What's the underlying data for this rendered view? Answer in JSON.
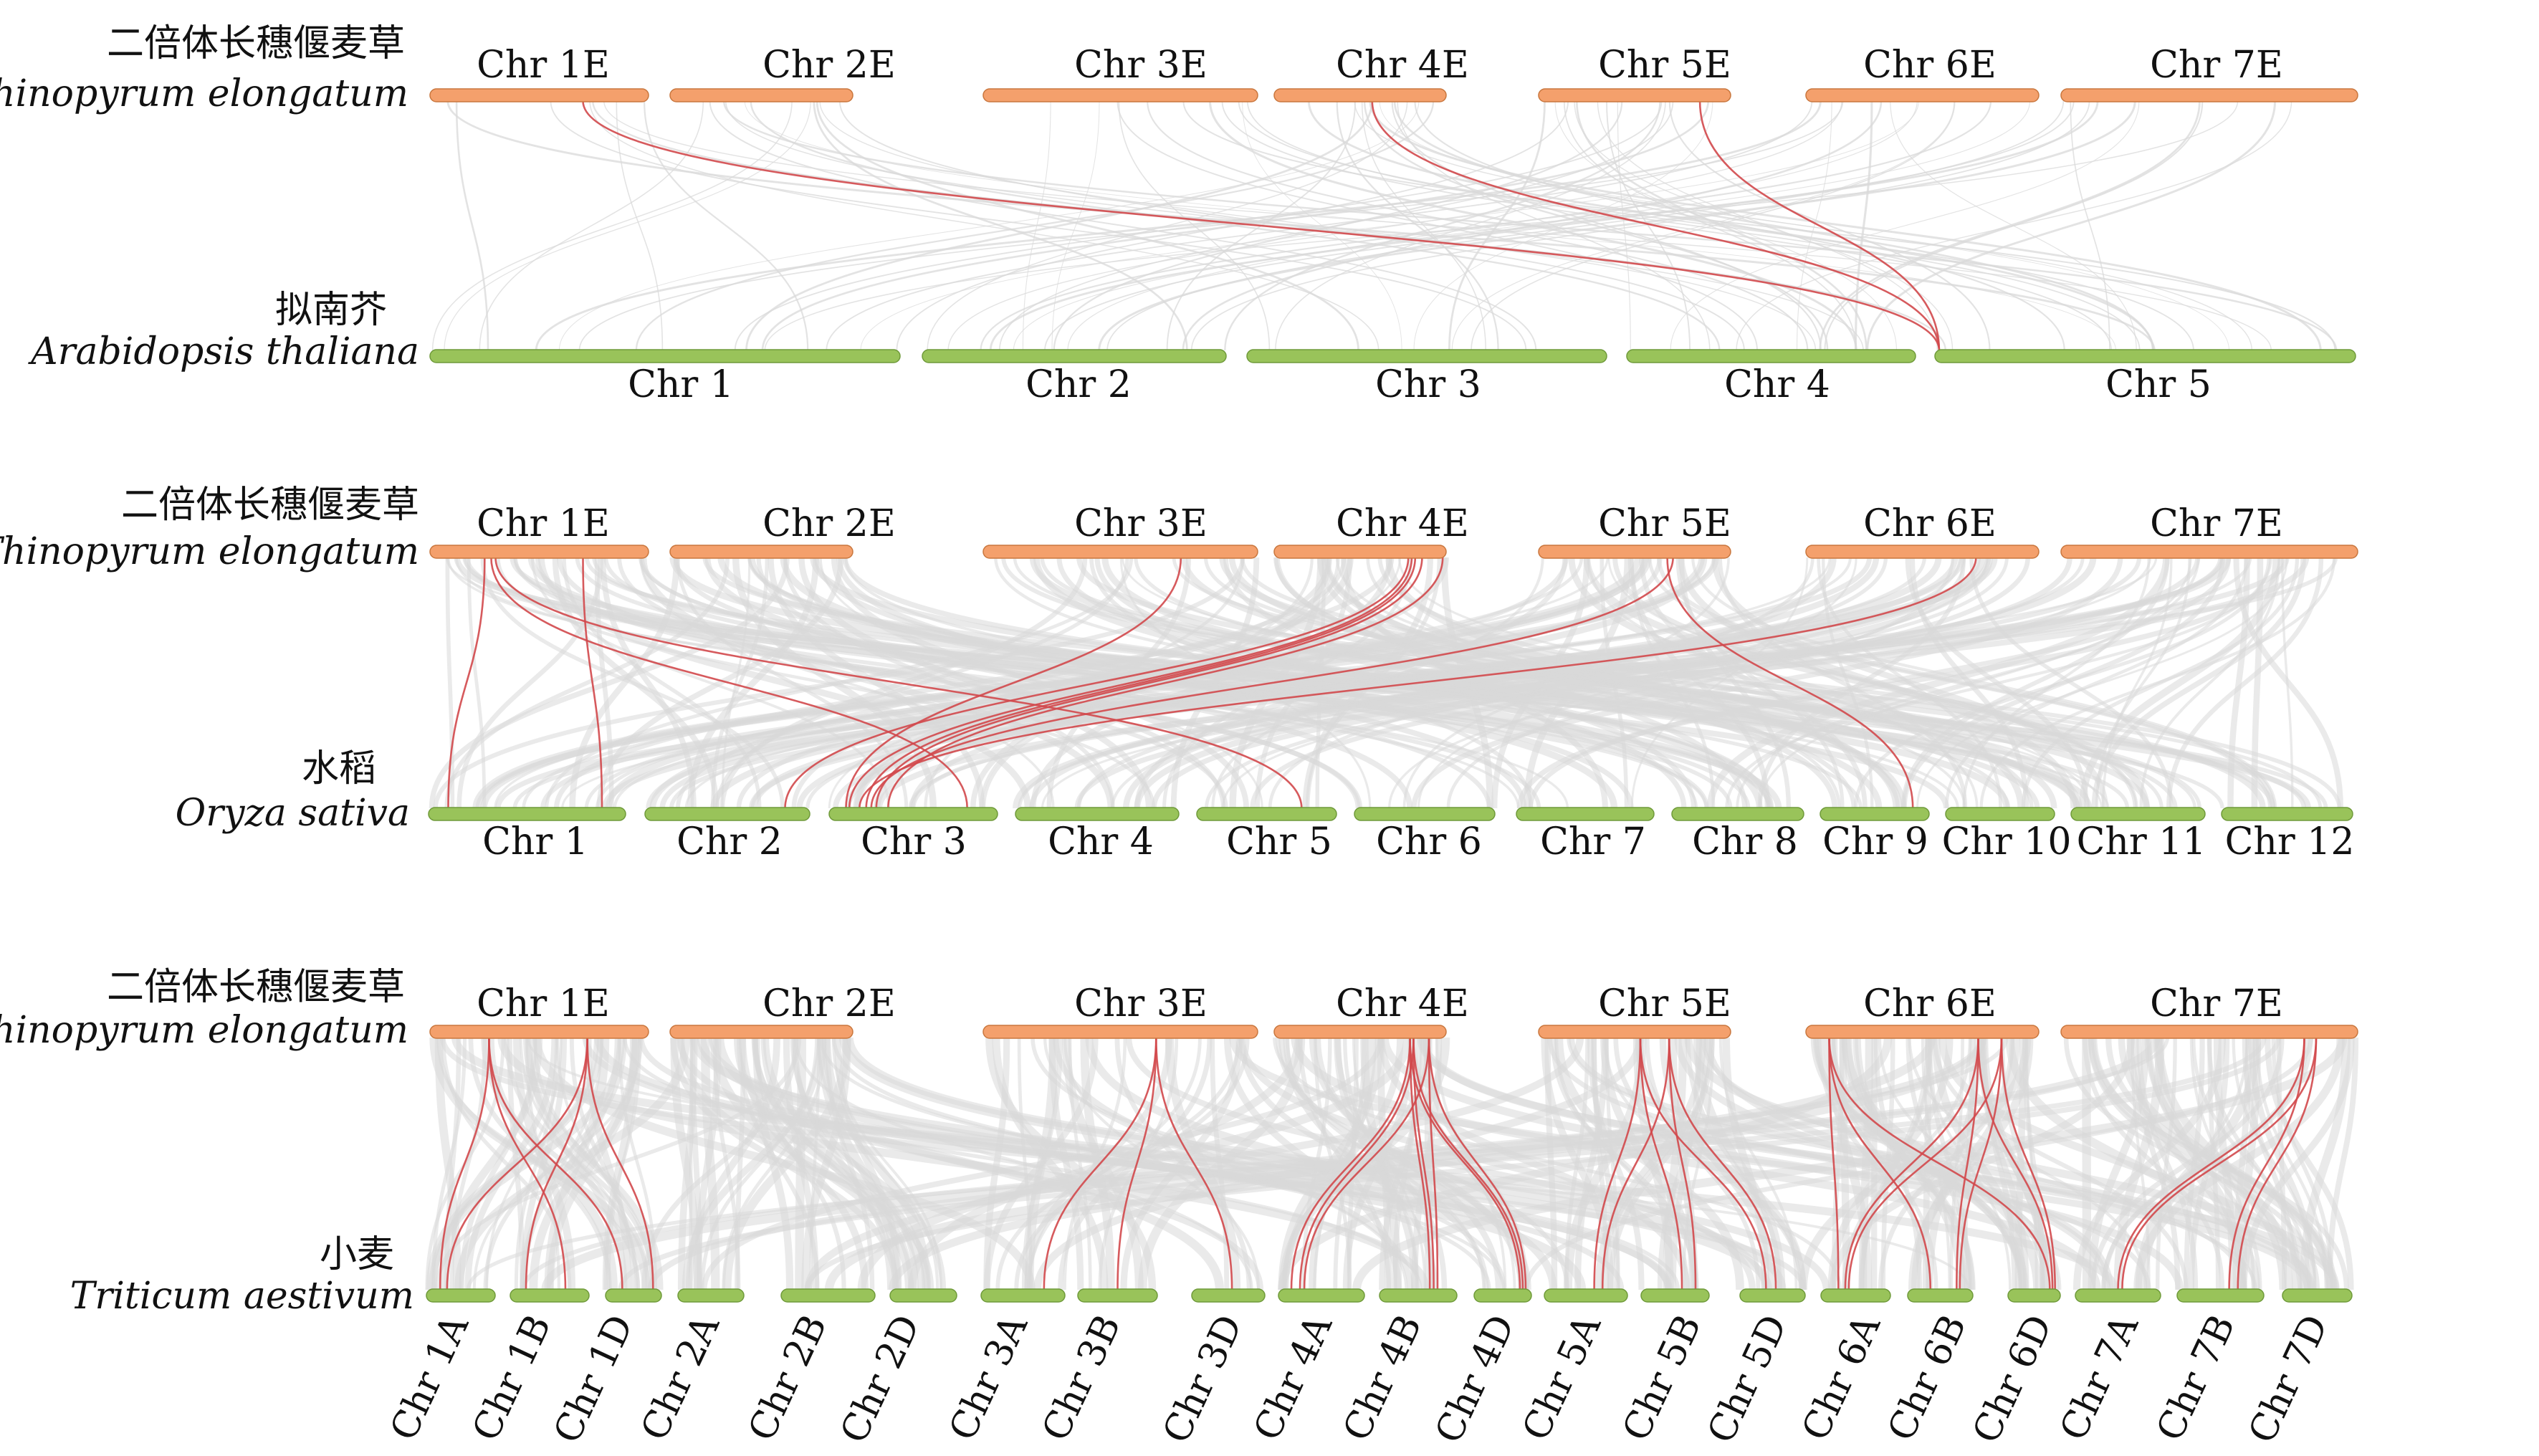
{
  "colors": {
    "top_bar": "#f4a06c",
    "top_bar_edge": "#c9773e",
    "bottom_bar": "#99c35a",
    "bottom_bar_edge": "#6f9a3a",
    "background_link": "#d9d9d9",
    "highlight_link": "#d2484b"
  },
  "top_genome": {
    "cn_name": "二倍体长穗偃麦草",
    "latin_name": "Thinopyrum elongatum",
    "chromosomes": [
      "Chr 1E",
      "Chr 2E",
      "Chr 3E",
      "Chr 4E",
      "Chr 5E",
      "Chr 6E",
      "Chr 7E"
    ]
  },
  "panels": [
    {
      "id": "arabidopsis",
      "bottom_cn": "拟南芥",
      "bottom_latin": "Arabidopsis thaliana",
      "bottom_chromosomes": [
        "Chr 1",
        "Chr 2",
        "Chr 3",
        "Chr 4",
        "Chr 5"
      ],
      "highlight_links": [
        {
          "top_chr": "Chr 1E",
          "top_pos": 0.7,
          "bottom_chr": "Chr 5",
          "bottom_pos": 0.01
        },
        {
          "top_chr": "Chr 4E",
          "top_pos": 0.57,
          "bottom_chr": "Chr 5",
          "bottom_pos": 0.01
        },
        {
          "top_chr": "Chr 5E",
          "top_pos": 0.84,
          "bottom_chr": "Chr 5",
          "bottom_pos": 0.01
        }
      ]
    },
    {
      "id": "rice",
      "bottom_cn": "水稻",
      "bottom_latin": "Oryza sativa",
      "bottom_chromosomes": [
        "Chr 1",
        "Chr 2",
        "Chr 3",
        "Chr 4",
        "Chr 5",
        "Chr 6",
        "Chr 7",
        "Chr 8",
        "Chr 9",
        "Chr 10",
        "Chr 11",
        "Chr 12"
      ],
      "highlight_links": [
        {
          "top_chr": "Chr 1E",
          "top_pos": 0.25,
          "bottom_chr": "Chr 1",
          "bottom_pos": 0.1
        },
        {
          "top_chr": "Chr 1E",
          "top_pos": 0.7,
          "bottom_chr": "Chr 1",
          "bottom_pos": 0.88
        },
        {
          "top_chr": "Chr 1E",
          "top_pos": 0.28,
          "bottom_chr": "Chr 3",
          "bottom_pos": 0.82
        },
        {
          "top_chr": "Chr 1E",
          "top_pos": 0.3,
          "bottom_chr": "Chr 5",
          "bottom_pos": 0.75
        },
        {
          "top_chr": "Chr 3E",
          "top_pos": 0.72,
          "bottom_chr": "Chr 3",
          "bottom_pos": 0.1
        },
        {
          "top_chr": "Chr 4E",
          "top_pos": 0.78,
          "bottom_chr": "Chr 2",
          "bottom_pos": 0.85
        },
        {
          "top_chr": "Chr 4E",
          "top_pos": 0.8,
          "bottom_chr": "Chr 3",
          "bottom_pos": 0.12
        },
        {
          "top_chr": "Chr 4E",
          "top_pos": 0.82,
          "bottom_chr": "Chr 3",
          "bottom_pos": 0.22
        },
        {
          "top_chr": "Chr 4E",
          "top_pos": 0.86,
          "bottom_chr": "Chr 3",
          "bottom_pos": 0.28
        },
        {
          "top_chr": "Chr 4E",
          "top_pos": 0.98,
          "bottom_chr": "Chr 3",
          "bottom_pos": 0.35
        },
        {
          "top_chr": "Chr 5E",
          "top_pos": 0.7,
          "bottom_chr": "Chr 3",
          "bottom_pos": 0.25
        },
        {
          "top_chr": "Chr 5E",
          "top_pos": 0.67,
          "bottom_chr": "Chr 9",
          "bottom_pos": 0.85
        },
        {
          "top_chr": "Chr 6E",
          "top_pos": 0.73,
          "bottom_chr": "Chr 3",
          "bottom_pos": 0.18
        }
      ]
    },
    {
      "id": "wheat",
      "bottom_cn": "小麦",
      "bottom_latin": "Triticum aestivum",
      "bottom_chromosomes": [
        "Chr 1A",
        "Chr 1B",
        "Chr 1D",
        "Chr 2A",
        "Chr 2B",
        "Chr 2D",
        "Chr 3A",
        "Chr 3B",
        "Chr 3D",
        "Chr 4A",
        "Chr 4B",
        "Chr 4D",
        "Chr 5A",
        "Chr 5B",
        "Chr 5D",
        "Chr 6A",
        "Chr 6B",
        "Chr 6D",
        "Chr 7A",
        "Chr 7B",
        "Chr 7D"
      ],
      "highlight_links": [
        {
          "top_chr": "Chr 1E",
          "top_pos": 0.27,
          "bottom_chr": "Chr 1A",
          "bottom_pos": 0.2
        },
        {
          "top_chr": "Chr 1E",
          "top_pos": 0.27,
          "bottom_chr": "Chr 1B",
          "bottom_pos": 0.7
        },
        {
          "top_chr": "Chr 1E",
          "top_pos": 0.27,
          "bottom_chr": "Chr 1D",
          "bottom_pos": 0.3
        },
        {
          "top_chr": "Chr 1E",
          "top_pos": 0.72,
          "bottom_chr": "Chr 1A",
          "bottom_pos": 0.3
        },
        {
          "top_chr": "Chr 1E",
          "top_pos": 0.72,
          "bottom_chr": "Chr 1B",
          "bottom_pos": 0.2
        },
        {
          "top_chr": "Chr 1E",
          "top_pos": 0.72,
          "bottom_chr": "Chr 1D",
          "bottom_pos": 0.85
        },
        {
          "top_chr": "Chr 3E",
          "top_pos": 0.63,
          "bottom_chr": "Chr 3A",
          "bottom_pos": 0.75
        },
        {
          "top_chr": "Chr 3E",
          "top_pos": 0.63,
          "bottom_chr": "Chr 3B",
          "bottom_pos": 0.5
        },
        {
          "top_chr": "Chr 3E",
          "top_pos": 0.63,
          "bottom_chr": "Chr 3D",
          "bottom_pos": 0.55
        },
        {
          "top_chr": "Chr 4E",
          "top_pos": 0.79,
          "bottom_chr": "Chr 4A",
          "bottom_pos": 0.15
        },
        {
          "top_chr": "Chr 4E",
          "top_pos": 0.79,
          "bottom_chr": "Chr 4B",
          "bottom_pos": 0.65
        },
        {
          "top_chr": "Chr 4E",
          "top_pos": 0.79,
          "bottom_chr": "Chr 4D",
          "bottom_pos": 0.8
        },
        {
          "top_chr": "Chr 4E",
          "top_pos": 0.81,
          "bottom_chr": "Chr 4A",
          "bottom_pos": 0.25
        },
        {
          "top_chr": "Chr 4E",
          "top_pos": 0.81,
          "bottom_chr": "Chr 4B",
          "bottom_pos": 0.7
        },
        {
          "top_chr": "Chr 4E",
          "top_pos": 0.81,
          "bottom_chr": "Chr 4D",
          "bottom_pos": 0.85
        },
        {
          "top_chr": "Chr 4E",
          "top_pos": 0.9,
          "bottom_chr": "Chr 4A",
          "bottom_pos": 0.3
        },
        {
          "top_chr": "Chr 4E",
          "top_pos": 0.9,
          "bottom_chr": "Chr 4B",
          "bottom_pos": 0.75
        },
        {
          "top_chr": "Chr 4E",
          "top_pos": 0.9,
          "bottom_chr": "Chr 4D",
          "bottom_pos": 0.9
        },
        {
          "top_chr": "Chr 5E",
          "top_pos": 0.53,
          "bottom_chr": "Chr 5A",
          "bottom_pos": 0.6
        },
        {
          "top_chr": "Chr 5E",
          "top_pos": 0.53,
          "bottom_chr": "Chr 5B",
          "bottom_pos": 0.6
        },
        {
          "top_chr": "Chr 5E",
          "top_pos": 0.53,
          "bottom_chr": "Chr 5D",
          "bottom_pos": 0.4
        },
        {
          "top_chr": "Chr 5E",
          "top_pos": 0.68,
          "bottom_chr": "Chr 5A",
          "bottom_pos": 0.7
        },
        {
          "top_chr": "Chr 5E",
          "top_pos": 0.68,
          "bottom_chr": "Chr 5B",
          "bottom_pos": 0.8
        },
        {
          "top_chr": "Chr 5E",
          "top_pos": 0.68,
          "bottom_chr": "Chr 5D",
          "bottom_pos": 0.55
        },
        {
          "top_chr": "Chr 6E",
          "top_pos": 0.1,
          "bottom_chr": "Chr 6A",
          "bottom_pos": 0.25
        },
        {
          "top_chr": "Chr 6E",
          "top_pos": 0.1,
          "bottom_chr": "Chr 6B",
          "bottom_pos": 0.35
        },
        {
          "top_chr": "Chr 6E",
          "top_pos": 0.1,
          "bottom_chr": "Chr 6D",
          "bottom_pos": 0.8
        },
        {
          "top_chr": "Chr 6E",
          "top_pos": 0.74,
          "bottom_chr": "Chr 6A",
          "bottom_pos": 0.35
        },
        {
          "top_chr": "Chr 6E",
          "top_pos": 0.74,
          "bottom_chr": "Chr 6B",
          "bottom_pos": 0.75
        },
        {
          "top_chr": "Chr 6E",
          "top_pos": 0.74,
          "bottom_chr": "Chr 6D",
          "bottom_pos": 0.85
        },
        {
          "top_chr": "Chr 6E",
          "top_pos": 0.84,
          "bottom_chr": "Chr 6A",
          "bottom_pos": 0.4
        },
        {
          "top_chr": "Chr 6E",
          "top_pos": 0.84,
          "bottom_chr": "Chr 6B",
          "bottom_pos": 0.8
        },
        {
          "top_chr": "Chr 6E",
          "top_pos": 0.84,
          "bottom_chr": "Chr 6D",
          "bottom_pos": 0.9
        },
        {
          "top_chr": "Chr 7E",
          "top_pos": 0.82,
          "bottom_chr": "Chr 7A",
          "bottom_pos": 0.5
        },
        {
          "top_chr": "Chr 7E",
          "top_pos": 0.82,
          "bottom_chr": "Chr 7B",
          "bottom_pos": 0.6
        },
        {
          "top_chr": "Chr 7E",
          "top_pos": 0.86,
          "bottom_chr": "Chr 7A",
          "bottom_pos": 0.55
        },
        {
          "top_chr": "Chr 7E",
          "top_pos": 0.86,
          "bottom_chr": "Chr 7B",
          "bottom_pos": 0.7
        }
      ]
    }
  ]
}
